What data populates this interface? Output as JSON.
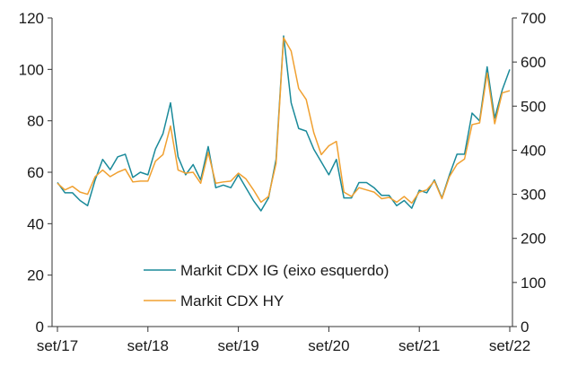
{
  "chart_data": {
    "type": "line",
    "title": "",
    "xlabel": "",
    "ylabel_left": "",
    "ylabel_right": "",
    "y_left_ticks": [
      "0",
      "20",
      "40",
      "60",
      "80",
      "100",
      "120"
    ],
    "y_left_lim": [
      0,
      120
    ],
    "y_right_ticks": [
      "0",
      "100",
      "200",
      "300",
      "400",
      "500",
      "600",
      "700"
    ],
    "y_right_lim": [
      0,
      700
    ],
    "x_ticks": [
      {
        "label": "set/17",
        "index": 0
      },
      {
        "label": "set/18",
        "index": 12
      },
      {
        "label": "set/19",
        "index": 24
      },
      {
        "label": "set/20",
        "index": 36
      },
      {
        "label": "set/21",
        "index": 48
      },
      {
        "label": "set/22",
        "index": 60
      }
    ],
    "grid": false,
    "legend_position": "bottom-center",
    "series": [
      {
        "name": "Markit CDX IG (eixo esquerdo)",
        "axis": "left",
        "color": "#1a8a9a",
        "values": [
          56,
          52,
          52,
          49,
          47,
          57,
          65,
          61,
          66,
          67,
          58,
          60,
          59,
          69,
          75,
          87,
          66,
          59,
          63,
          57,
          70,
          54,
          55,
          54,
          59,
          54,
          49,
          45,
          50,
          65,
          113,
          87,
          77,
          76,
          69,
          64,
          59,
          65,
          50,
          50,
          56,
          56,
          54,
          51,
          51,
          47,
          49,
          46,
          53,
          52,
          57,
          50,
          59,
          67,
          67,
          83,
          80,
          101,
          81,
          92,
          100
        ]
      },
      {
        "name": "Markit CDX HY",
        "axis": "right",
        "color": "#f0a030",
        "values": [
          325,
          310,
          318,
          305,
          300,
          340,
          355,
          340,
          350,
          357,
          328,
          330,
          330,
          375,
          390,
          455,
          355,
          348,
          350,
          325,
          395,
          325,
          328,
          330,
          348,
          335,
          310,
          282,
          295,
          370,
          655,
          625,
          540,
          515,
          440,
          390,
          410,
          420,
          305,
          295,
          315,
          310,
          305,
          290,
          293,
          282,
          295,
          280,
          305,
          310,
          330,
          290,
          340,
          368,
          380,
          458,
          462,
          575,
          460,
          530,
          535
        ]
      }
    ]
  }
}
